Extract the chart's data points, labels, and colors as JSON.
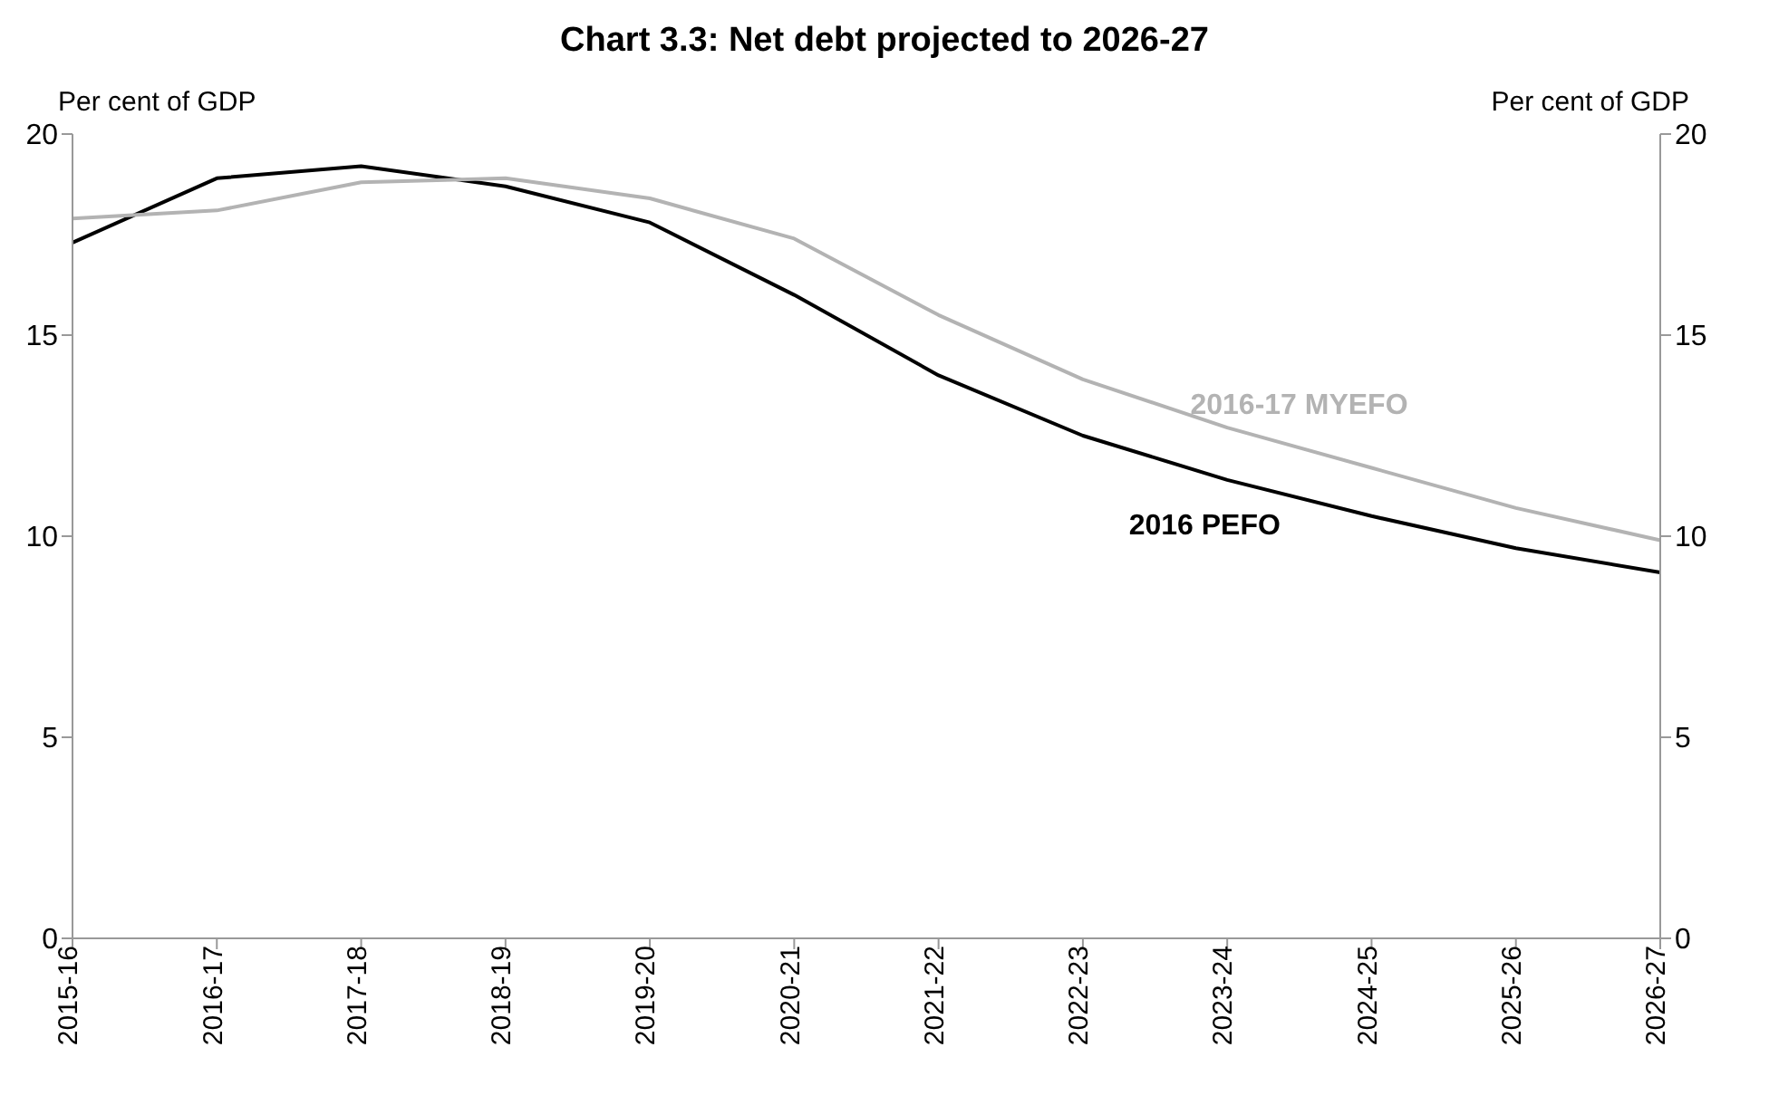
{
  "chart_data": {
    "type": "line",
    "title": "Chart 3.3: Net debt projected to 2026-27",
    "ylabel": "Per cent of GDP",
    "y2label": "Per cent of GDP",
    "categories": [
      "2015-16",
      "2016-17",
      "2017-18",
      "2018-19",
      "2019-20",
      "2020-21",
      "2021-22",
      "2022-23",
      "2023-24",
      "2024-25",
      "2025-26",
      "2026-27"
    ],
    "series": [
      {
        "name": "2016 PEFO",
        "color": "#000000",
        "values": [
          17.3,
          18.9,
          19.2,
          18.7,
          17.8,
          16.0,
          14.0,
          12.5,
          11.4,
          10.5,
          9.7,
          9.1
        ]
      },
      {
        "name": "2016-17 MYEFO",
        "color": "#b3b3b3",
        "values": [
          17.9,
          18.1,
          18.8,
          18.9,
          18.4,
          17.4,
          15.5,
          13.9,
          12.7,
          11.7,
          10.7,
          9.9
        ]
      }
    ],
    "ylim": [
      0,
      20
    ],
    "yticks": [
      0,
      5,
      10,
      15,
      20
    ],
    "y2lim": [
      0,
      20
    ],
    "y2ticks": [
      0,
      5,
      10,
      15,
      20
    ],
    "legend": false,
    "marker": "none",
    "line_style": "solid"
  }
}
